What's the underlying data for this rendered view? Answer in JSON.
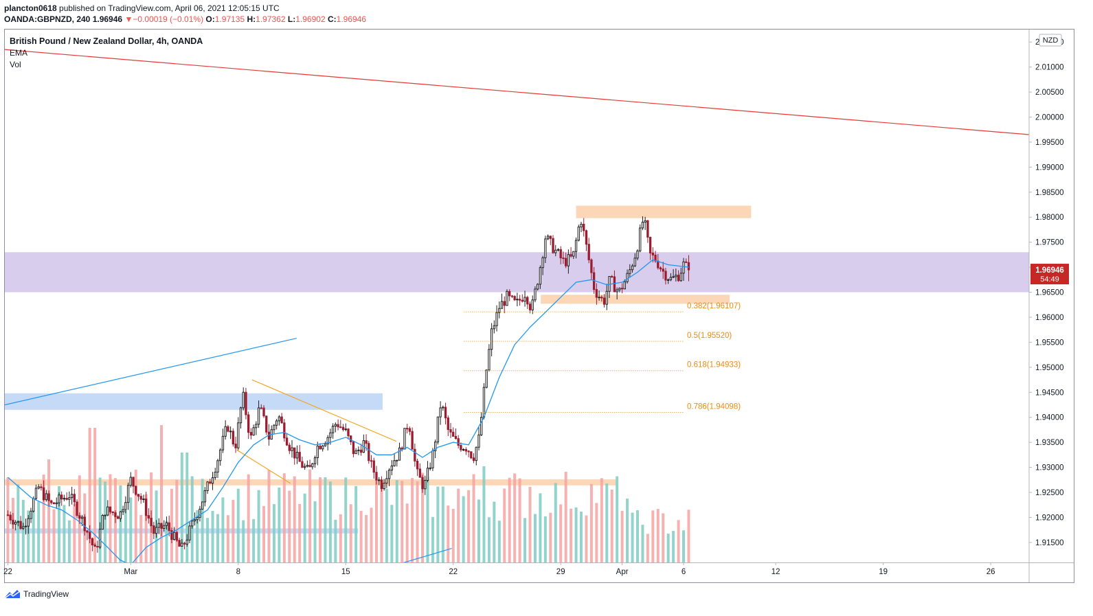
{
  "header": {
    "publisher": "plancton0618",
    "published_text": "published on TradingView.com, April 06, 2021 12:05:15 UTC",
    "ticker": "OANDA:GBPNZD, 240",
    "last": "1.96946",
    "change_arrow": "▼",
    "change": "−0.00019 (−0.01%)",
    "o_label": "O:",
    "o": "1.97135",
    "h_label": "H:",
    "h": "1.97362",
    "l_label": "L:",
    "l": "1.96902",
    "c_label": "C:",
    "c": "1.96946"
  },
  "legend": {
    "title": "British Pound / New Zealand Dollar, 4h, OANDA",
    "ema": "EMA",
    "vol": "Vol"
  },
  "footer": {
    "brand": "TradingView",
    "logo_icon": "tradingview-logo-icon"
  },
  "colors": {
    "up": "#26a69a",
    "down": "#ef5350",
    "candle_up": "#1e1e1e",
    "candle_down": "#9b1c2e",
    "vol_up": "#7fcdc2",
    "vol_down": "#f4a3a3",
    "ema": "#2196f3",
    "trend_red": "#e53935",
    "zone_orange": "#fbd3b0",
    "zone_purple": "#d1c4e9",
    "zone_blue": "#bfd6f6",
    "fib": "#ef8a10",
    "channel": "#f5a623"
  },
  "chart_data": {
    "type": "candlestick",
    "currency": "NZD",
    "price_badge": "1.96946",
    "countdown": "54:49",
    "y_range": [
      1.911,
      2.0175
    ],
    "y_ticks": [
      "2.01500",
      "2.01000",
      "2.00500",
      "2.00000",
      "1.99500",
      "1.99000",
      "1.98500",
      "1.98000",
      "1.97500",
      "1.97000",
      "1.96500",
      "1.96000",
      "1.95500",
      "1.95000",
      "1.94500",
      "1.94000",
      "1.93500",
      "1.93000",
      "1.92500",
      "1.92000",
      "1.91500"
    ],
    "x_ticks": [
      {
        "label": "22",
        "day": -7
      },
      {
        "label": "Mar",
        "day": 1
      },
      {
        "label": "8",
        "day": 8
      },
      {
        "label": "15",
        "day": 15
      },
      {
        "label": "22",
        "day": 22
      },
      {
        "label": "29",
        "day": 29
      },
      {
        "label": "Apr",
        "day": 33
      },
      {
        "label": "6",
        "day": 37
      },
      {
        "label": "12",
        "day": 43
      },
      {
        "label": "19",
        "day": 50
      },
      {
        "label": "26",
        "day": 57
      }
    ],
    "x_range": [
      -7.2,
      59.5
    ],
    "last_day": 37.35,
    "pivots": [
      {
        "day": -7.0,
        "p": 1.9205
      },
      {
        "day": -6.0,
        "p": 1.918
      },
      {
        "day": -5.0,
        "p": 1.926
      },
      {
        "day": -4.2,
        "p": 1.9225
      },
      {
        "day": -3.0,
        "p": 1.9245
      },
      {
        "day": -2.0,
        "p": 1.9185
      },
      {
        "day": -1.3,
        "p": 1.913
      },
      {
        "day": -0.7,
        "p": 1.9215
      },
      {
        "day": 0.3,
        "p": 1.9205
      },
      {
        "day": 1.0,
        "p": 1.9275
      },
      {
        "day": 1.8,
        "p": 1.923
      },
      {
        "day": 2.5,
        "p": 1.917
      },
      {
        "day": 3.3,
        "p": 1.9185
      },
      {
        "day": 4.3,
        "p": 1.9135
      },
      {
        "day": 5.0,
        "p": 1.9185
      },
      {
        "day": 5.8,
        "p": 1.9245
      },
      {
        "day": 6.6,
        "p": 1.931
      },
      {
        "day": 7.3,
        "p": 1.9385
      },
      {
        "day": 7.8,
        "p": 1.934
      },
      {
        "day": 8.3,
        "p": 1.9445
      },
      {
        "day": 8.8,
        "p": 1.9355
      },
      {
        "day": 9.4,
        "p": 1.942
      },
      {
        "day": 10.0,
        "p": 1.936
      },
      {
        "day": 10.6,
        "p": 1.9405
      },
      {
        "day": 11.3,
        "p": 1.9345
      },
      {
        "day": 12.0,
        "p": 1.931
      },
      {
        "day": 12.6,
        "p": 1.929
      },
      {
        "day": 13.1,
        "p": 1.934
      },
      {
        "day": 13.8,
        "p": 1.936
      },
      {
        "day": 14.4,
        "p": 1.939
      },
      {
        "day": 15.0,
        "p": 1.937
      },
      {
        "day": 15.6,
        "p": 1.9325
      },
      {
        "day": 16.2,
        "p": 1.935
      },
      {
        "day": 16.7,
        "p": 1.93
      },
      {
        "day": 17.3,
        "p": 1.9265
      },
      {
        "day": 17.9,
        "p": 1.9305
      },
      {
        "day": 18.5,
        "p": 1.933
      },
      {
        "day": 19.1,
        "p": 1.9395
      },
      {
        "day": 19.6,
        "p": 1.929
      },
      {
        "day": 20.1,
        "p": 1.926
      },
      {
        "day": 20.7,
        "p": 1.933
      },
      {
        "day": 21.2,
        "p": 1.943
      },
      {
        "day": 21.7,
        "p": 1.937
      },
      {
        "day": 22.3,
        "p": 1.9345
      },
      {
        "day": 22.9,
        "p": 1.934
      },
      {
        "day": 23.3,
        "p": 1.932
      },
      {
        "day": 23.7,
        "p": 1.936
      },
      {
        "day": 24.1,
        "p": 1.948
      },
      {
        "day": 24.5,
        "p": 1.957
      },
      {
        "day": 25.0,
        "p": 1.962
      },
      {
        "day": 25.5,
        "p": 1.964
      },
      {
        "day": 26.1,
        "p": 1.9625
      },
      {
        "day": 26.7,
        "p": 1.965
      },
      {
        "day": 27.1,
        "p": 1.9615
      },
      {
        "day": 27.6,
        "p": 1.969
      },
      {
        "day": 28.0,
        "p": 1.976
      },
      {
        "day": 28.6,
        "p": 1.9735
      },
      {
        "day": 29.2,
        "p": 1.971
      },
      {
        "day": 29.8,
        "p": 1.972
      },
      {
        "day": 30.3,
        "p": 1.98
      },
      {
        "day": 30.8,
        "p": 1.972
      },
      {
        "day": 31.2,
        "p": 1.9655
      },
      {
        "day": 31.8,
        "p": 1.963
      },
      {
        "day": 32.2,
        "p": 1.9675
      },
      {
        "day": 32.8,
        "p": 1.965
      },
      {
        "day": 33.4,
        "p": 1.9685
      },
      {
        "day": 33.9,
        "p": 1.973
      },
      {
        "day": 34.4,
        "p": 1.98
      },
      {
        "day": 34.8,
        "p": 1.9725
      },
      {
        "day": 35.2,
        "p": 1.9715
      },
      {
        "day": 35.7,
        "p": 1.969
      },
      {
        "day": 36.2,
        "p": 1.9675
      },
      {
        "day": 36.7,
        "p": 1.9685
      },
      {
        "day": 37.0,
        "p": 1.9705
      },
      {
        "day": 37.35,
        "p": 1.9695
      }
    ],
    "ema_points": [
      {
        "day": -7.0,
        "p": 1.928
      },
      {
        "day": -5.5,
        "p": 1.924
      },
      {
        "day": -4.5,
        "p": 1.9225
      },
      {
        "day": -3.5,
        "p": 1.9215
      },
      {
        "day": -2.5,
        "p": 1.9195
      },
      {
        "day": -1.5,
        "p": 1.917
      },
      {
        "day": -0.5,
        "p": 1.914
      },
      {
        "day": 0.3,
        "p": 1.9115
      },
      {
        "day": 1.0,
        "p": 1.9105
      },
      {
        "day": 2.0,
        "p": 1.914
      },
      {
        "day": 3.0,
        "p": 1.916
      },
      {
        "day": 4.0,
        "p": 1.9175
      },
      {
        "day": 5.0,
        "p": 1.9195
      },
      {
        "day": 6.0,
        "p": 1.9215
      },
      {
        "day": 7.0,
        "p": 1.926
      },
      {
        "day": 8.0,
        "p": 1.931
      },
      {
        "day": 9.0,
        "p": 1.9345
      },
      {
        "day": 10.0,
        "p": 1.9365
      },
      {
        "day": 11.0,
        "p": 1.937
      },
      {
        "day": 12.0,
        "p": 1.9355
      },
      {
        "day": 13.0,
        "p": 1.9345
      },
      {
        "day": 14.0,
        "p": 1.935
      },
      {
        "day": 15.0,
        "p": 1.936
      },
      {
        "day": 16.0,
        "p": 1.9345
      },
      {
        "day": 17.0,
        "p": 1.9325
      },
      {
        "day": 18.0,
        "p": 1.9325
      },
      {
        "day": 19.0,
        "p": 1.934
      },
      {
        "day": 20.0,
        "p": 1.932
      },
      {
        "day": 21.0,
        "p": 1.934
      },
      {
        "day": 22.0,
        "p": 1.935
      },
      {
        "day": 23.0,
        "p": 1.9345
      },
      {
        "day": 24.0,
        "p": 1.94
      },
      {
        "day": 25.0,
        "p": 1.948
      },
      {
        "day": 26.0,
        "p": 1.9545
      },
      {
        "day": 27.0,
        "p": 1.958
      },
      {
        "day": 28.0,
        "p": 1.961
      },
      {
        "day": 29.0,
        "p": 1.964
      },
      {
        "day": 30.0,
        "p": 1.967
      },
      {
        "day": 31.0,
        "p": 1.9675
      },
      {
        "day": 32.0,
        "p": 1.9665
      },
      {
        "day": 33.0,
        "p": 1.967
      },
      {
        "day": 34.0,
        "p": 1.969
      },
      {
        "day": 35.0,
        "p": 1.9715
      },
      {
        "day": 36.0,
        "p": 1.9705
      },
      {
        "day": 37.35,
        "p": 1.97
      }
    ],
    "volume": {
      "scale_max": 100,
      "base_up": 30,
      "base_down": 34,
      "spikes": [
        {
          "day": -4.3,
          "v": 75
        },
        {
          "day": -1.5,
          "v": 98
        },
        {
          "day": 3.0,
          "v": 100
        },
        {
          "day": 4.5,
          "v": 80
        },
        {
          "day": 13.5,
          "v": 62
        },
        {
          "day": 24.0,
          "v": 70
        },
        {
          "day": 27.0,
          "v": 55
        }
      ]
    },
    "zones": [
      {
        "kind": "orange",
        "d1": 30.0,
        "d2": 41.4,
        "p1": 1.9823,
        "p2": 1.9798
      },
      {
        "kind": "purple",
        "d1": -7.2,
        "d2": 59.5,
        "p1": 1.973,
        "p2": 1.965
      },
      {
        "kind": "orange",
        "d1": 27.7,
        "d2": 40.0,
        "p1": 1.9645,
        "p2": 1.9627
      },
      {
        "kind": "blue",
        "d1": -7.2,
        "d2": 17.4,
        "p1": 1.9448,
        "p2": 1.9415
      },
      {
        "kind": "orange",
        "d1": -7.2,
        "d2": 32.6,
        "p1": 1.9276,
        "p2": 1.9264
      },
      {
        "kind": "blue",
        "d1": -7.2,
        "d2": 15.8,
        "p1": 1.9178,
        "p2": 1.9168
      }
    ],
    "trendlines": [
      {
        "kind": "trend_red",
        "d1": -7.2,
        "p1": 2.0135,
        "d2": 59.5,
        "p2": 1.9965
      },
      {
        "kind": "ema",
        "d1": -7.2,
        "p1": 1.9425,
        "d2": 11.8,
        "p2": 1.9558
      },
      {
        "kind": "ema",
        "d1": 18.6,
        "p1": 1.9108,
        "d2": 21.9,
        "p2": 1.9138
      },
      {
        "kind": "channel",
        "d1": 8.9,
        "p1": 1.9475,
        "d2": 18.3,
        "p2": 1.9352
      },
      {
        "kind": "channel",
        "d1": 7.9,
        "p1": 1.9335,
        "d2": 11.4,
        "p2": 1.9268
      }
    ],
    "fibs": [
      {
        "label": "0.382(1.96107)",
        "price": 1.96107
      },
      {
        "label": "0.5(1.95520)",
        "price": 1.9552
      },
      {
        "label": "0.618(1.94933)",
        "price": 1.94933
      },
      {
        "label": "0.786(1.94098)",
        "price": 1.94098
      }
    ],
    "fib_range": [
      22.7,
      37.0
    ]
  }
}
